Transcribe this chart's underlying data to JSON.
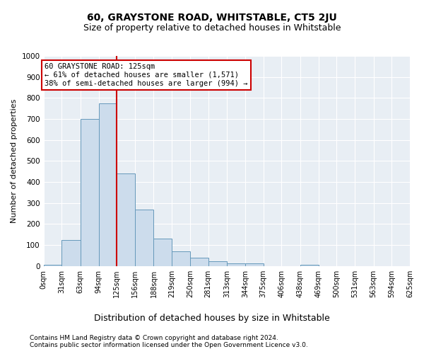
{
  "title": "60, GRAYSTONE ROAD, WHITSTABLE, CT5 2JU",
  "subtitle": "Size of property relative to detached houses in Whitstable",
  "xlabel": "Distribution of detached houses by size in Whitstable",
  "ylabel": "Number of detached properties",
  "footnote1": "Contains HM Land Registry data © Crown copyright and database right 2024.",
  "footnote2": "Contains public sector information licensed under the Open Government Licence v3.0.",
  "bar_edges": [
    0,
    31,
    63,
    94,
    125,
    156,
    188,
    219,
    250,
    281,
    313,
    344,
    375,
    406,
    438,
    469,
    500,
    531,
    563,
    594,
    625
  ],
  "bar_heights": [
    5,
    125,
    700,
    775,
    440,
    270,
    130,
    70,
    38,
    22,
    11,
    11,
    0,
    0,
    5,
    0,
    0,
    0,
    0,
    0
  ],
  "bar_color": "#ccdcec",
  "bar_edgecolor": "#6699bb",
  "property_value": 125,
  "vline_color": "#cc0000",
  "annotation_line1": "60 GRAYSTONE ROAD: 125sqm",
  "annotation_line2": "← 61% of detached houses are smaller (1,571)",
  "annotation_line3": "38% of semi-detached houses are larger (994) →",
  "annotation_box_edgecolor": "#cc0000",
  "ylim": [
    0,
    1000
  ],
  "yticks": [
    0,
    100,
    200,
    300,
    400,
    500,
    600,
    700,
    800,
    900,
    1000
  ],
  "bg_color": "#ffffff",
  "plot_bg_color": "#e8eef4",
  "title_fontsize": 10,
  "subtitle_fontsize": 9,
  "ylabel_fontsize": 8,
  "xlabel_fontsize": 9,
  "footnote_fontsize": 6.5,
  "tick_fontsize": 7,
  "ytick_fontsize": 7.5
}
